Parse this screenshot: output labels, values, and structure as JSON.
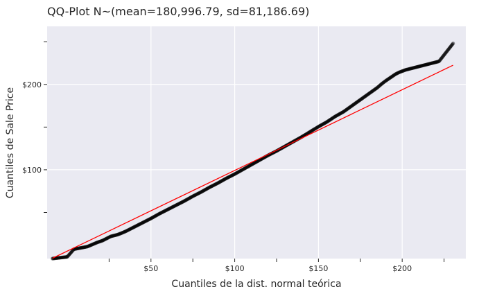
{
  "chart_data": {
    "type": "scatter",
    "title": "QQ-Plot N~(mean=180,996.79, sd=81,186.69)",
    "xlabel": "Cuantiles de la dist. normal teórica",
    "ylabel": "Cuantiles de Sale Price",
    "xlim": [
      -12,
      238
    ],
    "ylim": [
      -4,
      268
    ],
    "x_ticks": [
      25,
      50,
      75,
      100,
      125,
      150,
      175,
      200,
      225
    ],
    "x_tick_labels": [
      "",
      "$50",
      "",
      "$100",
      "",
      "$150",
      "",
      "$200",
      ""
    ],
    "y_ticks": [
      50,
      100,
      150,
      200,
      250
    ],
    "y_tick_labels": [
      "",
      "$100",
      "",
      "$200",
      ""
    ],
    "grid": true,
    "background_color": "#eaeaf2",
    "grid_color": "#ffffff",
    "point_color": "#000000",
    "line_color": "#ff0000",
    "reference_line": {
      "x": [
        -8.8,
        230.4
      ],
      "y": [
        -3.6,
        222.5
      ]
    },
    "points": {
      "x": [
        -8.8,
        0.0,
        4.0,
        8.0,
        12.0,
        15.0,
        18.0,
        21.0,
        24.0,
        26.0,
        28.0,
        30.0,
        32.0,
        35.0,
        38.0,
        40.0,
        45.0,
        50.0,
        55.0,
        60.0,
        65.0,
        70.0,
        75.0,
        80.0,
        85.0,
        90.0,
        95.0,
        100.0,
        105.0,
        110.0,
        115.0,
        120.0,
        125.0,
        130.0,
        135.0,
        140.0,
        145.0,
        150.0,
        155.0,
        160.0,
        165.0,
        170.0,
        175.0,
        180.0,
        185.0,
        188.0,
        190.0,
        193.0,
        196.0,
        198.0,
        200.0,
        202.0,
        204.0,
        206.0,
        208.0,
        212.0,
        216.0,
        222.0,
        230.4
      ],
      "y": [
        -4.0,
        -2.0,
        7.0,
        8.5,
        10.0,
        12.5,
        15.0,
        17.0,
        20.0,
        22.0,
        23.0,
        24.0,
        25.5,
        28.0,
        31.0,
        33.0,
        38.0,
        43.0,
        48.5,
        53.5,
        58.5,
        63.5,
        69.0,
        74.0,
        79.5,
        84.5,
        90.0,
        95.0,
        100.5,
        106.0,
        111.5,
        117.0,
        122.0,
        127.5,
        133.0,
        138.5,
        144.5,
        150.5,
        156.0,
        162.5,
        168.0,
        175.0,
        182.0,
        189.0,
        196.0,
        201.0,
        204.0,
        208.0,
        212.0,
        214.0,
        215.5,
        217.0,
        218.0,
        219.0,
        220.0,
        222.0,
        224.0,
        227.0,
        248.0
      ]
    }
  }
}
